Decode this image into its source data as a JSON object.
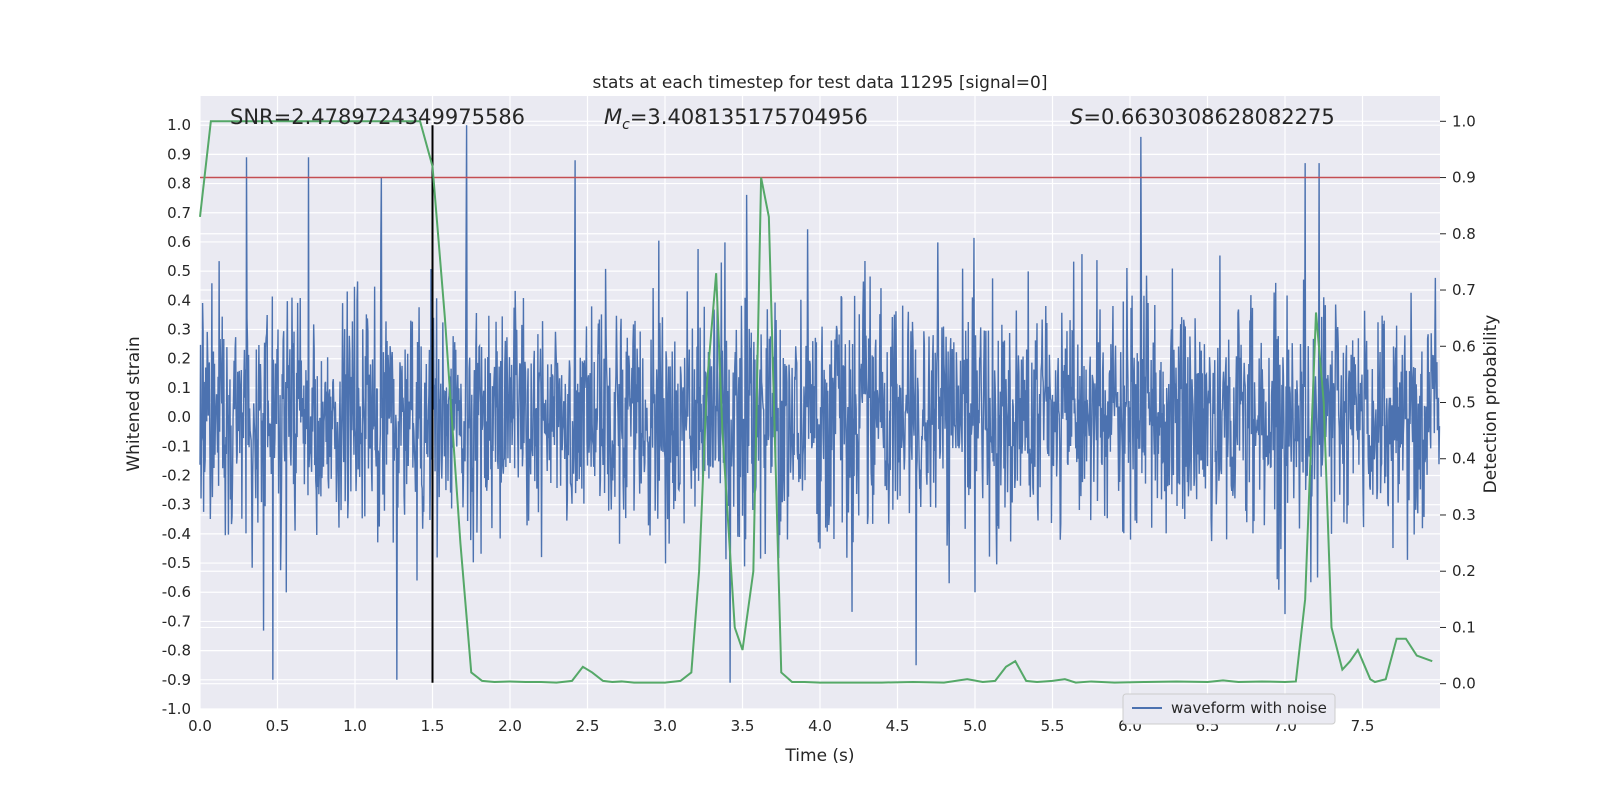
{
  "chart_data": {
    "type": "line",
    "title": "stats at each timestep for test data 11295 [signal=0]",
    "xlabel": "Time (s)",
    "ylabel": "Whitened strain",
    "y2label": "Detection probability",
    "xlim": [
      0,
      8
    ],
    "ylim": [
      -1.0,
      1.1
    ],
    "y2lim": [
      -0.045,
      1.045
    ],
    "xticks": [
      "0.0",
      "0.5",
      "1.0",
      "1.5",
      "2.0",
      "2.5",
      "3.0",
      "3.5",
      "4.0",
      "4.5",
      "5.0",
      "5.5",
      "6.0",
      "6.5",
      "7.0",
      "7.5"
    ],
    "yticks": [
      "-1.0",
      "-0.9",
      "-0.8",
      "-0.7",
      "-0.6",
      "-0.5",
      "-0.4",
      "-0.3",
      "-0.2",
      "-0.1",
      "0.0",
      "0.1",
      "0.2",
      "0.3",
      "0.4",
      "0.5",
      "0.6",
      "0.7",
      "0.8",
      "0.9",
      "1.0"
    ],
    "y2ticks": [
      "0.0",
      "0.1",
      "0.2",
      "0.3",
      "0.4",
      "0.5",
      "0.6",
      "0.7",
      "0.8",
      "0.9",
      "1.0"
    ],
    "grid": true,
    "legend_position": "lower-right",
    "annotations": {
      "snr": "SNR=2.4789724349975586",
      "mc_sym": "M",
      "mc_sub": "c",
      "mc_val": "=3.408135175704956",
      "s_sym": "S",
      "s_val": "=0.6630308628082275"
    },
    "threshold_y2": 0.9,
    "marker_time": 1.5,
    "series": [
      {
        "name": "waveform with noise",
        "color": "#4c72b0",
        "axis": "left",
        "description_values": "noise samples between about -0.9 and 1.0",
        "peaks": [
          {
            "t": 0.3,
            "v": 0.89
          },
          {
            "t": 0.7,
            "v": 0.89
          },
          {
            "t": 1.17,
            "v": 0.82
          },
          {
            "t": 1.72,
            "v": 1.0
          },
          {
            "t": 2.42,
            "v": 0.88
          },
          {
            "t": 6.07,
            "v": 0.96
          },
          {
            "t": 7.13,
            "v": 0.87
          },
          {
            "t": 7.22,
            "v": 0.87
          },
          {
            "t": 0.47,
            "v": -0.9
          },
          {
            "t": 1.27,
            "v": -0.9
          },
          {
            "t": 3.42,
            "v": -0.91
          },
          {
            "t": 4.62,
            "v": -0.85
          }
        ]
      },
      {
        "color": "#55a868",
        "axis": "right",
        "x": [
          0.0,
          0.07,
          0.15,
          0.3,
          0.6,
          0.9,
          1.2,
          1.42,
          1.5,
          1.58,
          1.68,
          1.75,
          1.82,
          1.9,
          2.0,
          2.1,
          2.2,
          2.3,
          2.4,
          2.47,
          2.53,
          2.6,
          2.66,
          2.72,
          2.8,
          2.9,
          3.0,
          3.1,
          3.17,
          3.22,
          3.27,
          3.33,
          3.37,
          3.45,
          3.5,
          3.57,
          3.62,
          3.67,
          3.75,
          3.82,
          3.9,
          4.0,
          4.2,
          4.4,
          4.6,
          4.8,
          4.95,
          5.05,
          5.13,
          5.2,
          5.26,
          5.33,
          5.4,
          5.5,
          5.58,
          5.65,
          5.75,
          5.9,
          6.1,
          6.3,
          6.5,
          6.6,
          6.7,
          6.85,
          7.0,
          7.07,
          7.13,
          7.2,
          7.25,
          7.3,
          7.37,
          7.42,
          7.47,
          7.55,
          7.58,
          7.65,
          7.72,
          7.78,
          7.85,
          7.95
        ],
        "y": [
          0.83,
          1.0,
          1.0,
          1.0,
          1.0,
          1.0,
          1.0,
          1.0,
          0.92,
          0.65,
          0.25,
          0.02,
          0.005,
          0.003,
          0.004,
          0.003,
          0.003,
          0.002,
          0.005,
          0.03,
          0.02,
          0.005,
          0.003,
          0.004,
          0.002,
          0.002,
          0.002,
          0.005,
          0.02,
          0.2,
          0.53,
          0.73,
          0.45,
          0.1,
          0.06,
          0.2,
          0.9,
          0.83,
          0.02,
          0.003,
          0.003,
          0.002,
          0.002,
          0.002,
          0.003,
          0.002,
          0.008,
          0.003,
          0.005,
          0.03,
          0.04,
          0.005,
          0.003,
          0.005,
          0.008,
          0.002,
          0.004,
          0.002,
          0.003,
          0.004,
          0.003,
          0.006,
          0.003,
          0.004,
          0.003,
          0.004,
          0.15,
          0.66,
          0.5,
          0.1,
          0.025,
          0.04,
          0.06,
          0.008,
          0.003,
          0.008,
          0.08,
          0.08,
          0.05,
          0.04
        ]
      }
    ],
    "colors": {
      "background": "#eaeaf2",
      "grid": "#ffffff",
      "threshold": "#c44e52",
      "marker": "#000000"
    }
  }
}
